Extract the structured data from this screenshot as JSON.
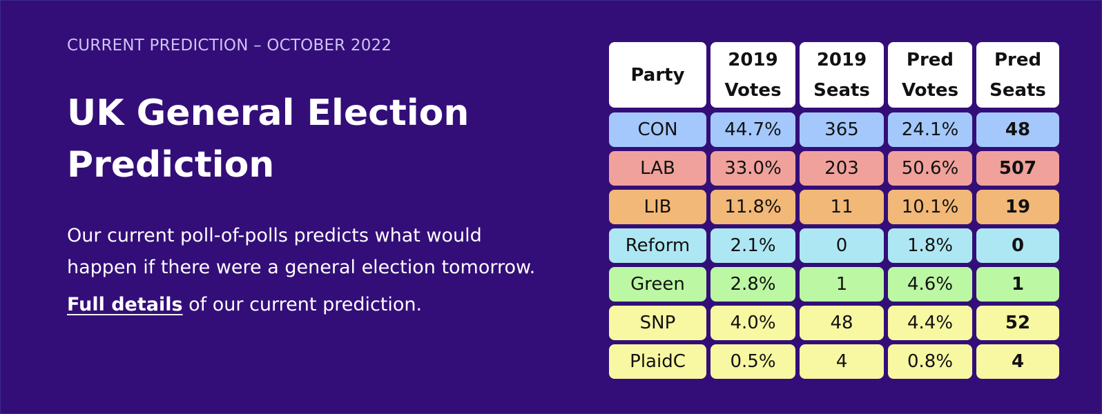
{
  "eyebrow": "CURRENT PREDICTION – OCTOBER 2022",
  "title_line1": "UK General Election",
  "title_line2": "Prediction",
  "description": "Our current poll-of-polls predicts what would happen if there were a general election tomorrow.",
  "details_link": "Full details",
  "details_rest": " of our current prediction.",
  "table": {
    "headers": [
      [
        "Party"
      ],
      [
        "2019",
        "Votes"
      ],
      [
        "2019",
        "Seats"
      ],
      [
        "Pred",
        "Votes"
      ],
      [
        "Pred",
        "Seats"
      ]
    ],
    "rows": [
      {
        "party": "CON",
        "votes2019": "44.7%",
        "seats2019": "365",
        "predVotes": "24.1%",
        "predSeats": "48",
        "color": "#a4c8fc"
      },
      {
        "party": "LAB",
        "votes2019": "33.0%",
        "seats2019": "203",
        "predVotes": "50.6%",
        "predSeats": "507",
        "color": "#f0a19b"
      },
      {
        "party": "LIB",
        "votes2019": "11.8%",
        "seats2019": "11",
        "predVotes": "10.1%",
        "predSeats": "19",
        "color": "#f2b877"
      },
      {
        "party": "Reform",
        "votes2019": "2.1%",
        "seats2019": "0",
        "predVotes": "1.8%",
        "predSeats": "0",
        "color": "#ade7f3"
      },
      {
        "party": "Green",
        "votes2019": "2.8%",
        "seats2019": "1",
        "predVotes": "4.6%",
        "predSeats": "1",
        "color": "#bcf7a3"
      },
      {
        "party": "SNP",
        "votes2019": "4.0%",
        "seats2019": "48",
        "predVotes": "4.4%",
        "predSeats": "52",
        "color": "#f8f7a2"
      },
      {
        "party": "PlaidC",
        "votes2019": "0.5%",
        "seats2019": "4",
        "predVotes": "0.8%",
        "predSeats": "4",
        "color": "#f8f7a2"
      }
    ]
  }
}
